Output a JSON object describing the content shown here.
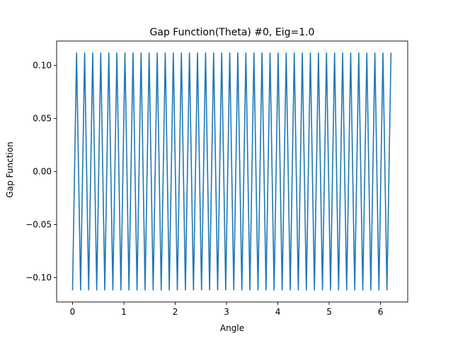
{
  "chart_data": {
    "type": "line",
    "title": "Gap Function(Theta) #0, Eig=1.0",
    "xlabel": "Angle",
    "ylabel": "Gap Function",
    "xlim": [
      -0.31,
      6.53
    ],
    "ylim": [
      -0.1229,
      0.1229
    ],
    "xticks": [
      0,
      1,
      2,
      3,
      4,
      5,
      6
    ],
    "xtick_labels": [
      "0",
      "1",
      "2",
      "3",
      "4",
      "5",
      "6"
    ],
    "yticks": [
      -0.1,
      -0.05,
      0.0,
      0.05,
      0.1
    ],
    "ytick_labels": [
      "−0.10",
      "−0.05",
      "0.00",
      "0.05",
      "0.10"
    ],
    "grid": false,
    "legend": "none",
    "series": [
      {
        "color": "#1f77b4",
        "x": [
          0.0,
          0.0785,
          0.157,
          0.2356,
          0.3141,
          0.3927,
          0.4712,
          0.5497,
          0.6283,
          0.7068,
          0.7854,
          0.8639,
          0.9424,
          1.021,
          1.0995,
          1.1781,
          1.2566,
          1.3351,
          1.4137,
          1.4922,
          1.5707,
          1.6493,
          1.7278,
          1.8064,
          1.8849,
          1.9634,
          2.042,
          2.1205,
          2.1991,
          2.2776,
          2.3561,
          2.4347,
          2.5132,
          2.5917,
          2.6703,
          2.7488,
          2.8274,
          2.9059,
          2.9844,
          3.063,
          3.1415,
          3.2201,
          3.2986,
          3.3771,
          3.4557,
          3.5342,
          3.6128,
          3.6913,
          3.7698,
          3.8484,
          3.9269,
          4.0054,
          4.084,
          4.1625,
          4.2411,
          4.3196,
          4.3981,
          4.4767,
          4.5552,
          4.6338,
          4.7123,
          4.7908,
          4.8694,
          4.9479,
          5.0264,
          5.105,
          5.1835,
          5.2621,
          5.3406,
          5.4191,
          5.4977,
          5.5762,
          5.6548,
          5.7333,
          5.8118,
          5.8904,
          5.9689,
          6.0474,
          6.126,
          6.2045
        ],
        "y": [
          -0.112,
          0.112,
          -0.112,
          0.112,
          -0.112,
          0.112,
          -0.112,
          0.112,
          -0.112,
          0.112,
          -0.112,
          0.112,
          -0.112,
          0.112,
          -0.112,
          0.112,
          -0.112,
          0.112,
          -0.112,
          0.112,
          -0.112,
          0.112,
          -0.112,
          0.112,
          -0.112,
          0.112,
          -0.112,
          0.112,
          -0.112,
          0.112,
          -0.112,
          0.112,
          -0.112,
          0.112,
          -0.112,
          0.112,
          -0.112,
          0.112,
          -0.112,
          0.112,
          -0.112,
          0.112,
          -0.112,
          0.112,
          -0.112,
          0.112,
          -0.112,
          0.112,
          -0.112,
          0.112,
          -0.112,
          0.112,
          -0.112,
          0.112,
          -0.112,
          0.112,
          -0.112,
          0.112,
          -0.112,
          0.112,
          -0.112,
          0.112,
          -0.112,
          0.112,
          -0.112,
          0.112,
          -0.112,
          0.112,
          -0.112,
          0.112,
          -0.112,
          0.112,
          -0.112,
          0.112,
          -0.112,
          0.112,
          -0.112,
          0.112,
          -0.112,
          0.112
        ]
      }
    ]
  }
}
